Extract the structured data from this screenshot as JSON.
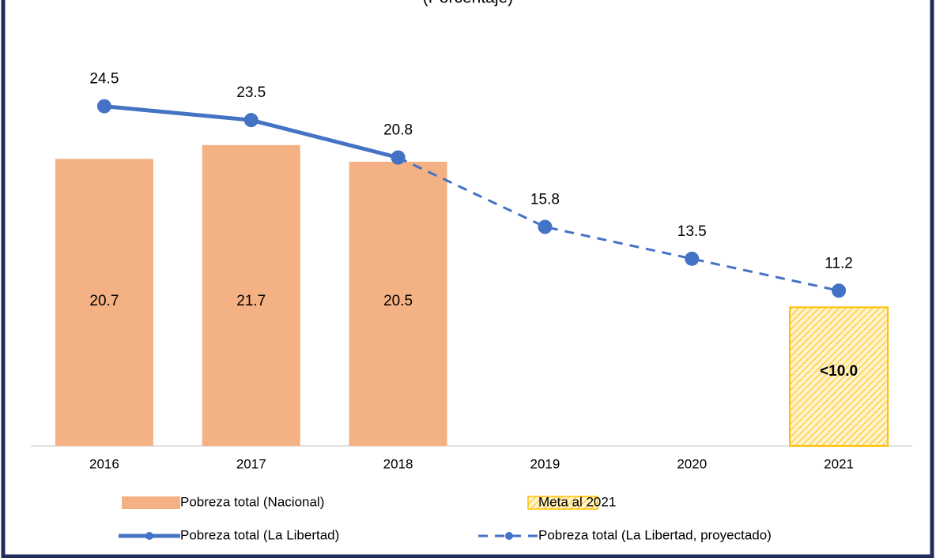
{
  "chart_data": {
    "type": "bar-line",
    "subtitle": "(Porcentaje)",
    "categories": [
      "2016",
      "2017",
      "2018",
      "2019",
      "2020",
      "2021"
    ],
    "ylim": [
      0,
      30
    ],
    "series": [
      {
        "name": "Pobreza total (Nacional)",
        "type": "bar",
        "color": "#f4b183",
        "values": [
          20.7,
          21.7,
          20.5,
          null,
          null,
          null
        ]
      },
      {
        "name": "Meta al 2021",
        "type": "bar",
        "color": "#ffd966",
        "values": [
          null,
          null,
          null,
          null,
          null,
          10.0
        ],
        "value_labels": [
          null,
          null,
          null,
          null,
          null,
          "<10.0"
        ]
      },
      {
        "name": "Pobreza total (La Libertad)",
        "type": "line",
        "color": "#4472c4",
        "values": [
          24.5,
          23.5,
          20.8,
          null,
          null,
          null
        ]
      },
      {
        "name": "Pobreza total (La Libertad, proyectado)",
        "type": "line",
        "dashed": true,
        "color": "#4472c4",
        "values": [
          null,
          null,
          20.8,
          15.8,
          13.5,
          11.2
        ]
      }
    ]
  }
}
